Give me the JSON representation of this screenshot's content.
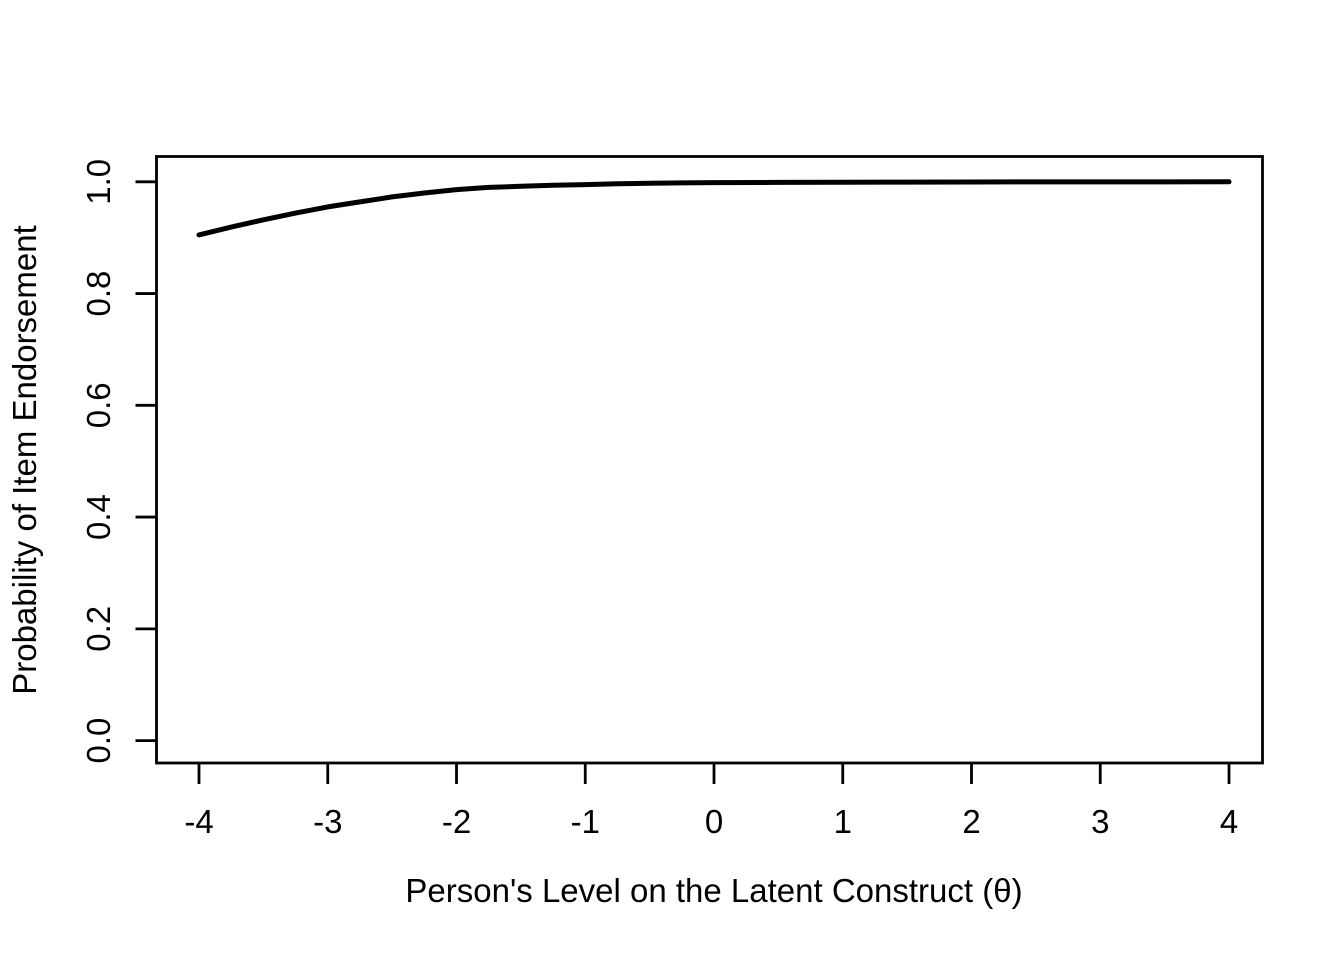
{
  "colors": {
    "background": "#ffffff",
    "foreground": "#000000"
  },
  "chart_data": {
    "type": "line",
    "title": "",
    "xlabel": "Person's Level on the Latent Construct (θ)",
    "ylabel": "Probability of Item Endorsement",
    "xlim": [
      -4.32,
      4.32
    ],
    "ylim": [
      -0.04,
      1.04
    ],
    "grid": false,
    "legend_position": "none",
    "box": "full",
    "x_ticks": [
      {
        "label": "-4",
        "value": -4
      },
      {
        "label": "-3",
        "value": -3
      },
      {
        "label": "-2",
        "value": -2
      },
      {
        "label": "-1",
        "value": -1
      },
      {
        "label": "0",
        "value": 0
      },
      {
        "label": "1",
        "value": 1
      },
      {
        "label": "2",
        "value": 2
      },
      {
        "label": "3",
        "value": 3
      },
      {
        "label": "4",
        "value": 4
      }
    ],
    "y_ticks": [
      {
        "label": "0.0",
        "value": 0.0
      },
      {
        "label": "0.2",
        "value": 0.2
      },
      {
        "label": "0.4",
        "value": 0.4
      },
      {
        "label": "0.6",
        "value": 0.6
      },
      {
        "label": "0.8",
        "value": 0.8
      },
      {
        "label": "1.0",
        "value": 1.0
      }
    ],
    "series": [
      {
        "name": "item-characteristic-curve",
        "color": "#000000",
        "line_width": 5,
        "points": [
          [
            -4.0,
            0.905
          ],
          [
            -3.75,
            0.919
          ],
          [
            -3.5,
            0.932
          ],
          [
            -3.25,
            0.944
          ],
          [
            -3.0,
            0.955
          ],
          [
            -2.75,
            0.964
          ],
          [
            -2.5,
            0.973
          ],
          [
            -2.25,
            0.98
          ],
          [
            -2.0,
            0.986
          ],
          [
            -1.75,
            0.99
          ],
          [
            -1.5,
            0.992
          ],
          [
            -1.25,
            0.994
          ],
          [
            -1.0,
            0.995
          ],
          [
            -0.75,
            0.9965
          ],
          [
            -0.5,
            0.9975
          ],
          [
            -0.25,
            0.998
          ],
          [
            0.0,
            0.9985
          ],
          [
            0.5,
            0.999
          ],
          [
            1.0,
            0.9993
          ],
          [
            1.5,
            0.9995
          ],
          [
            2.0,
            0.9997
          ],
          [
            2.5,
            0.9998
          ],
          [
            3.0,
            0.9999
          ],
          [
            3.5,
            0.9999
          ],
          [
            4.0,
            1.0
          ]
        ]
      }
    ]
  }
}
